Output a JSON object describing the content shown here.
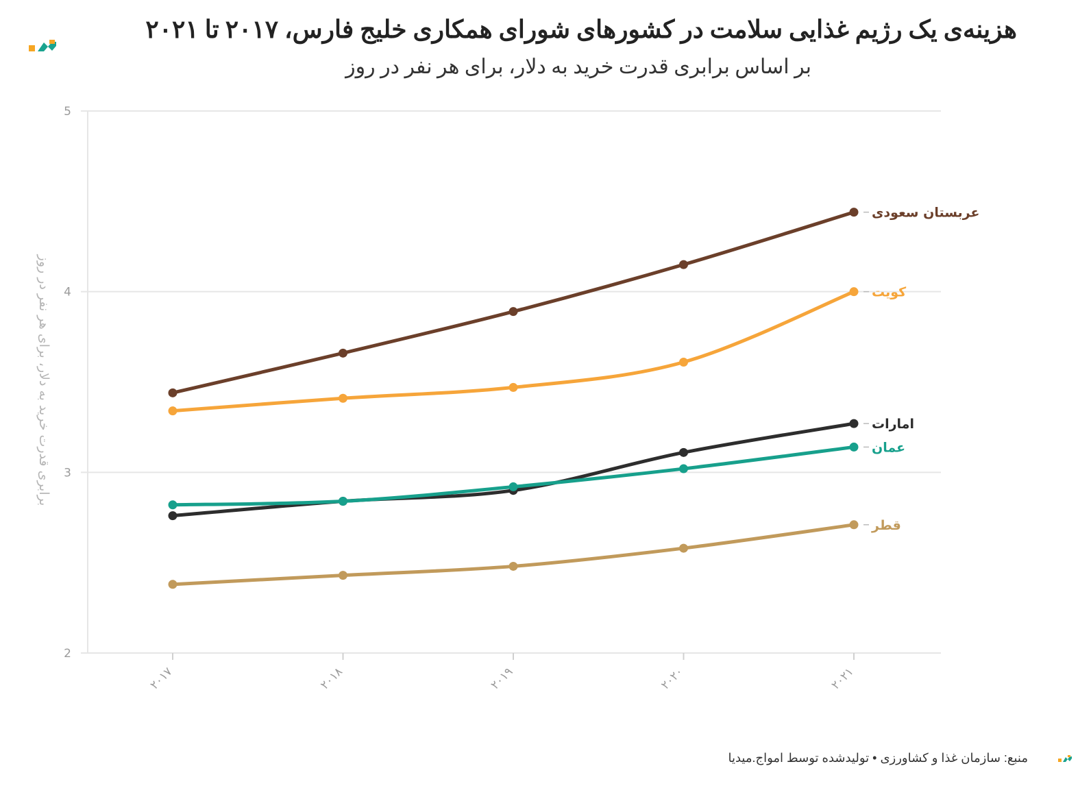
{
  "header": {
    "title": "هزینه‌ی یک رژیم غذایی سلامت در کشورهای شورای همکاری خلیج فارس، ۲۰۱۷ تا ۲۰۲۱",
    "subtitle": "بر اساس برابری قدرت خرید به دلار، برای هر نفر در روز"
  },
  "footer": {
    "source": "منبع: سازمان غذا و کشاورزی • تولیدشده توسط امواج.میدیا"
  },
  "logo": {
    "icon": "amwaj-logo-icon",
    "colors": [
      "#f6a623",
      "#1aa38f"
    ]
  },
  "chart_data": {
    "type": "line",
    "title": "هزینه‌ی یک رژیم غذایی سلامت در کشورهای شورای همکاری خلیج فارس، ۲۰۱۷ تا ۲۰۲۱",
    "subtitle": "بر اساس برابری قدرت خرید به دلار، برای هر نفر در روز",
    "xlabel": "",
    "ylabel": "برابری قدرت خرید به دلار، برای هر نفر در روز",
    "x": [
      "۲۰۱۷",
      "۲۰۱۸",
      "۲۰۱۹",
      "۲۰۲۰",
      "۲۰۲۱"
    ],
    "ylim": [
      2,
      5
    ],
    "yticks": [
      "2",
      "3",
      "4",
      "5"
    ],
    "grid": true,
    "legend": "direct labels at line ends (right)",
    "series": [
      {
        "name": "عربستان سعودی",
        "color": "#6b3f2a",
        "values": [
          3.44,
          3.66,
          3.89,
          4.15,
          4.44
        ]
      },
      {
        "name": "کویت",
        "color": "#f6a53a",
        "values": [
          3.34,
          3.41,
          3.47,
          3.61,
          4.0
        ]
      },
      {
        "name": "امارات",
        "color": "#2d2d2d",
        "values": [
          2.76,
          2.84,
          2.9,
          3.11,
          3.27
        ]
      },
      {
        "name": "عمان",
        "color": "#17a08c",
        "values": [
          2.82,
          2.84,
          2.92,
          3.02,
          3.14
        ]
      },
      {
        "name": "قطر",
        "color": "#c19a5b",
        "values": [
          2.38,
          2.43,
          2.48,
          2.58,
          2.71
        ]
      }
    ]
  }
}
